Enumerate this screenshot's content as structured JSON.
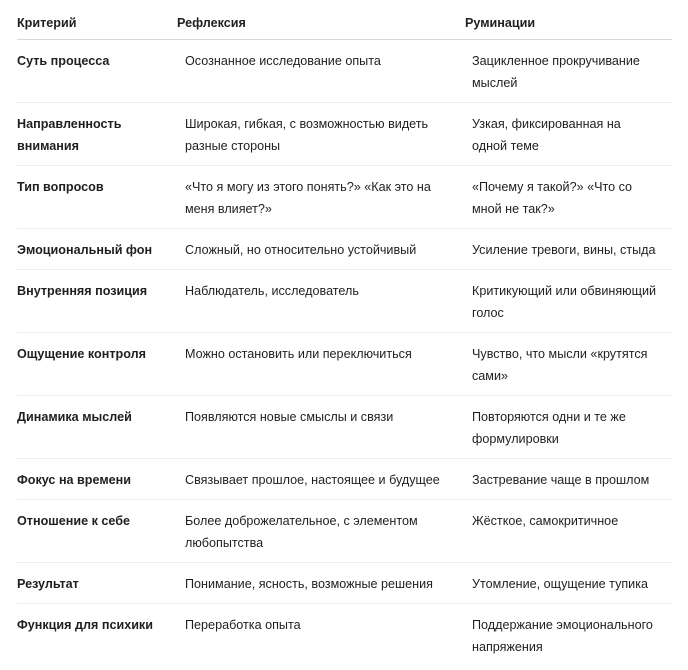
{
  "table": {
    "headers": [
      "Критерий",
      "Рефлексия",
      "Руминации"
    ],
    "rows": [
      [
        "Суть процесса",
        "Осознанное исследование опыта",
        "Зацикленное прокручивание мыслей"
      ],
      [
        "Направленность внимания",
        "Широкая, гибкая, с возможностью видеть разные стороны",
        "Узкая, фиксированная на одной теме"
      ],
      [
        "Тип вопросов",
        "«Что я могу из этого понять?» «Как это на меня влияет?»",
        "«Почему я такой?» «Что со мной не так?»"
      ],
      [
        "Эмоциональный фон",
        "Сложный, но относительно устойчивый",
        "Усиление тревоги, вины, стыда"
      ],
      [
        "Внутренняя позиция",
        "Наблюдатель, исследователь",
        "Критикующий или обвиняющий голос"
      ],
      [
        "Ощущение контроля",
        "Можно остановить или переключиться",
        "Чувство, что мысли «крутятся сами»"
      ],
      [
        "Динамика мыслей",
        "Появляются новые смыслы и связи",
        "Повторяются одни и те же формулировки"
      ],
      [
        "Фокус на времени",
        "Связывает прошлое, настоящее и будущее",
        "Застревание чаще в прошлом"
      ],
      [
        "Отношение к себе",
        "Более доброжелательное, с элементом любопытства",
        "Жёсткое, самокритичное"
      ],
      [
        "Результат",
        "Понимание, ясность, возможные решения",
        "Утомление, ощущение тупика"
      ],
      [
        "Функция для психики",
        "Переработка опыта",
        "Поддержание эмоционального напряжения"
      ]
    ]
  }
}
